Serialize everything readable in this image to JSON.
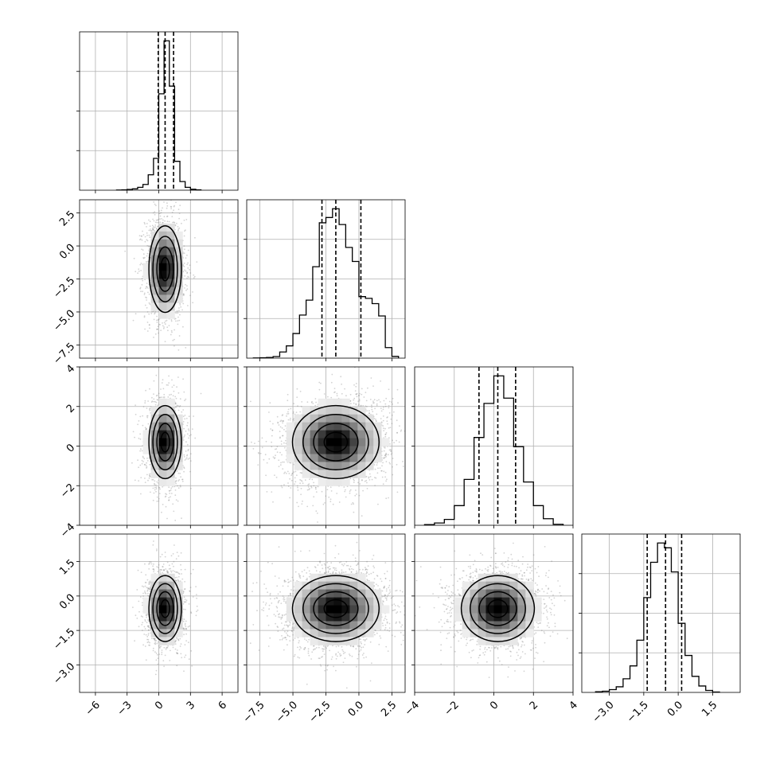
{
  "chart_data": {
    "type": "corner",
    "n_params": 4,
    "grid": true,
    "quantiles": [
      0.16,
      0.5,
      0.84
    ],
    "marginals": [
      {
        "param_index": 0,
        "range": [
          -7.5,
          7.5
        ],
        "quantile_values": [
          -0.05,
          0.6,
          1.4
        ],
        "bin_edges": [
          -4,
          -3.5,
          -3,
          -2.5,
          -2,
          -1.5,
          -1,
          -0.5,
          0,
          0.5,
          1,
          1.5,
          2,
          2.5,
          3,
          3.5,
          4
        ],
        "counts": [
          2,
          4,
          8,
          14,
          30,
          60,
          160,
          330,
          1000,
          1550,
          1080,
          300,
          90,
          30,
          10,
          4
        ]
      },
      {
        "param_index": 1,
        "range": [
          -8.5,
          3.5
        ],
        "quantile_values": [
          -2.8,
          -1.75,
          0.15
        ],
        "bin_edges": [
          -8,
          -7.5,
          -7,
          -6.5,
          -6,
          -5.5,
          -5,
          -4.5,
          -4,
          -3.5,
          -3,
          -2.5,
          -2,
          -1.5,
          -1,
          -0.5,
          0,
          0.5,
          1,
          1.5,
          2,
          2.5,
          3
        ],
        "counts": [
          2,
          4,
          8,
          18,
          70,
          140,
          280,
          490,
          660,
          1040,
          1540,
          1600,
          1700,
          1520,
          1260,
          1100,
          700,
          680,
          620,
          480,
          120,
          20
        ]
      },
      {
        "param_index": 2,
        "range": [
          -4,
          4
        ],
        "quantile_values": [
          -0.75,
          0.2,
          1.1
        ],
        "bin_edges": [
          -3.5,
          -3,
          -2.5,
          -2,
          -1.5,
          -1,
          -0.5,
          0,
          0.5,
          1,
          1.5,
          2,
          2.5,
          3,
          3.5
        ],
        "counts": [
          10,
          35,
          90,
          300,
          700,
          1340,
          1860,
          2280,
          1940,
          1200,
          660,
          300,
          100,
          15
        ]
      },
      {
        "param_index": 3,
        "range": [
          -4.2,
          2.7
        ],
        "quantile_values": [
          -1.35,
          -0.55,
          0.15
        ],
        "bin_edges": [
          -3.6,
          -3.3,
          -3,
          -2.7,
          -2.4,
          -2.1,
          -1.8,
          -1.5,
          -1.2,
          -0.9,
          -0.6,
          -0.3,
          0,
          0.3,
          0.6,
          0.9,
          1.2,
          1.5,
          1.8
        ],
        "counts": [
          8,
          15,
          35,
          70,
          170,
          330,
          650,
          1180,
          1620,
          1860,
          1800,
          1500,
          860,
          460,
          200,
          80,
          25,
          5
        ]
      }
    ],
    "joints": [
      {
        "x_param": 0,
        "y_param": 1,
        "x_center": 0.6,
        "y_center": -1.75,
        "x_sigma": 0.75,
        "y_sigma": 1.6,
        "corr": -0.05,
        "n_points": 1800
      },
      {
        "x_param": 0,
        "y_param": 2,
        "x_center": 0.6,
        "y_center": 0.2,
        "x_sigma": 0.75,
        "y_sigma": 0.9,
        "corr": 0.0,
        "n_points": 1600
      },
      {
        "x_param": 1,
        "y_param": 2,
        "x_center": -1.75,
        "y_center": 0.2,
        "x_sigma": 1.6,
        "y_sigma": 0.9,
        "corr": 0.1,
        "n_points": 2600
      },
      {
        "x_param": 0,
        "y_param": 3,
        "x_center": 0.6,
        "y_center": -0.55,
        "x_sigma": 0.75,
        "y_sigma": 0.7,
        "corr": 0.0,
        "n_points": 1600
      },
      {
        "x_param": 1,
        "y_param": 3,
        "x_center": -1.75,
        "y_center": -0.55,
        "x_sigma": 1.6,
        "y_sigma": 0.7,
        "corr": 0.05,
        "n_points": 2600
      },
      {
        "x_param": 2,
        "y_param": 3,
        "x_center": 0.2,
        "y_center": -0.55,
        "x_sigma": 0.9,
        "y_sigma": 0.7,
        "corr": 0.0,
        "n_points": 2200
      }
    ],
    "x_ticks": [
      {
        "values": [
          -6,
          -3,
          0,
          3,
          6
        ],
        "labels": [
          "−6",
          "−3",
          "0",
          "3",
          "6"
        ]
      },
      {
        "values": [
          -7.5,
          -5.0,
          -2.5,
          0.0,
          2.5
        ],
        "labels": [
          "−7.5",
          "−5.0",
          "−2.5",
          "0.0",
          "2.5"
        ]
      },
      {
        "values": [
          -4,
          -2,
          0,
          2,
          4
        ],
        "labels": [
          "−4",
          "−2",
          "0",
          "2",
          "4"
        ]
      },
      {
        "values": [
          -3.0,
          -1.5,
          0.0,
          1.5
        ],
        "labels": [
          "−3.0",
          "−1.5",
          "0.0",
          "1.5"
        ]
      }
    ],
    "y_ticks": [
      {
        "values": [],
        "labels": []
      },
      {
        "values": [
          2.5,
          0.0,
          -2.5,
          -5.0,
          -7.5
        ],
        "labels": [
          "2.5",
          "0.0",
          "−2.5",
          "−5.0",
          "−7.5"
        ]
      },
      {
        "values": [
          4,
          2,
          0,
          -2,
          -4
        ],
        "labels": [
          "4",
          "2",
          "0",
          "−2",
          "−4"
        ]
      },
      {
        "values": [
          1.5,
          0.0,
          -1.5,
          -3.0
        ],
        "labels": [
          "1.5",
          "0.0",
          "−1.5",
          "−3.0"
        ]
      }
    ],
    "colors": {
      "line": "#000000",
      "grid": "#b0b0b0",
      "points": "#808080",
      "density_max": "#000000"
    }
  }
}
